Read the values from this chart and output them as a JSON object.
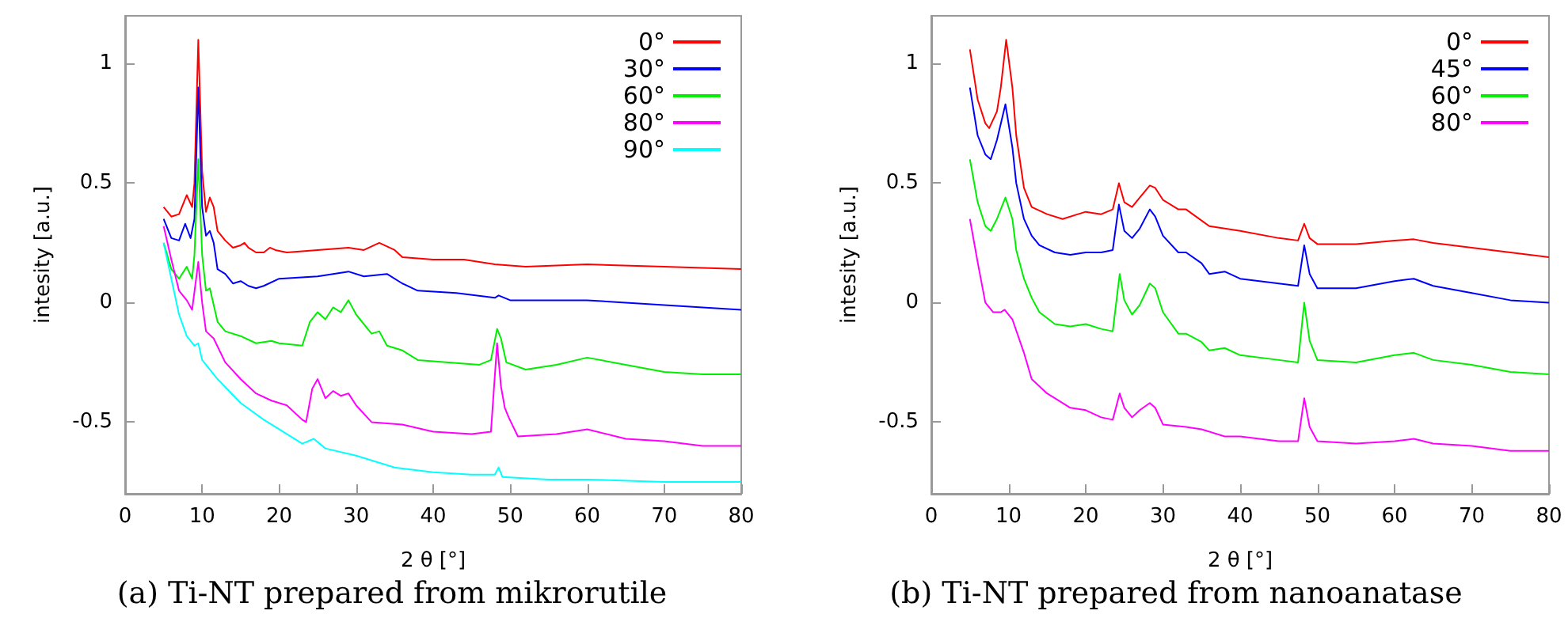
{
  "chart_data": [
    {
      "type": "line",
      "xlabel": "2 θ [°]",
      "ylabel": "intesity [a.u.]",
      "annotations": [
        "(a) Ti-NT prepared from mikrorutile"
      ],
      "xlim": [
        0,
        80
      ],
      "xticks": [
        0,
        10,
        20,
        30,
        40,
        50,
        60,
        70,
        80
      ],
      "ylim": [
        -0.8,
        1.2
      ],
      "yticks": [
        -0.5,
        0,
        0.5,
        1
      ],
      "grid": false,
      "legend": "top right",
      "line_style": "solid",
      "series": [
        {
          "name": "0°",
          "color": "#ff0000",
          "x": [
            5,
            6,
            7,
            8,
            8.7,
            9,
            9.5,
            10,
            10.5,
            11,
            11.5,
            12,
            13,
            14,
            15,
            15.5,
            16,
            17,
            18,
            18.8,
            19.5,
            21,
            25,
            29,
            31,
            33,
            35,
            36,
            40,
            44,
            48,
            52,
            60,
            70,
            80
          ],
          "values": [
            0.4,
            0.36,
            0.37,
            0.45,
            0.4,
            0.5,
            1.1,
            0.55,
            0.38,
            0.44,
            0.4,
            0.3,
            0.26,
            0.23,
            0.24,
            0.25,
            0.23,
            0.21,
            0.21,
            0.23,
            0.22,
            0.21,
            0.22,
            0.23,
            0.22,
            0.25,
            0.22,
            0.19,
            0.18,
            0.18,
            0.16,
            0.15,
            0.16,
            0.15,
            0.14
          ]
        },
        {
          "name": "30°",
          "color": "#0000ff",
          "x": [
            5,
            6,
            7,
            7.8,
            8.5,
            9,
            9.5,
            10,
            10.5,
            11,
            11.5,
            12,
            13,
            14,
            15,
            16,
            17,
            18,
            20,
            25,
            29,
            31,
            34,
            36,
            38,
            43,
            48,
            48.5,
            50,
            60,
            70,
            80
          ],
          "values": [
            0.35,
            0.27,
            0.26,
            0.33,
            0.27,
            0.35,
            0.9,
            0.4,
            0.28,
            0.3,
            0.25,
            0.14,
            0.12,
            0.08,
            0.09,
            0.07,
            0.06,
            0.07,
            0.1,
            0.11,
            0.13,
            0.11,
            0.12,
            0.08,
            0.05,
            0.04,
            0.02,
            0.03,
            0.01,
            0.01,
            -0.01,
            -0.03
          ]
        },
        {
          "name": "60°",
          "color": "#00ee00",
          "x": [
            5,
            6,
            7,
            8,
            8.7,
            9,
            9.5,
            10,
            10.5,
            11,
            12,
            13,
            15,
            17,
            19,
            20,
            23,
            24,
            25,
            26,
            27,
            28,
            29,
            30,
            32,
            33,
            34,
            36,
            38,
            42,
            46,
            47.5,
            48.3,
            48.8,
            49.5,
            52,
            56,
            60,
            65,
            70,
            75,
            80
          ],
          "values": [
            0.25,
            0.14,
            0.1,
            0.15,
            0.1,
            0.2,
            0.6,
            0.2,
            0.05,
            0.06,
            -0.08,
            -0.12,
            -0.14,
            -0.17,
            -0.16,
            -0.17,
            -0.18,
            -0.08,
            -0.04,
            -0.07,
            -0.02,
            -0.04,
            0.01,
            -0.05,
            -0.13,
            -0.12,
            -0.18,
            -0.2,
            -0.24,
            -0.25,
            -0.26,
            -0.24,
            -0.11,
            -0.15,
            -0.25,
            -0.28,
            -0.26,
            -0.23,
            -0.26,
            -0.29,
            -0.3,
            -0.3
          ]
        },
        {
          "name": "80°",
          "color": "#ff00ff",
          "x": [
            5,
            6,
            7,
            8,
            8.7,
            9.5,
            10,
            10.5,
            11.5,
            13,
            15,
            17,
            19,
            21,
            23,
            23.5,
            24.3,
            25,
            26,
            27,
            28,
            29,
            30,
            32,
            36,
            40,
            45,
            47.5,
            48.3,
            48.8,
            49.3,
            49.8,
            51,
            56,
            60,
            65,
            70,
            75,
            80
          ],
          "values": [
            0.32,
            0.18,
            0.05,
            0.01,
            -0.03,
            0.17,
            0.0,
            -0.12,
            -0.15,
            -0.25,
            -0.32,
            -0.38,
            -0.41,
            -0.43,
            -0.49,
            -0.5,
            -0.36,
            -0.32,
            -0.4,
            -0.37,
            -0.39,
            -0.38,
            -0.43,
            -0.5,
            -0.51,
            -0.54,
            -0.55,
            -0.54,
            -0.17,
            -0.35,
            -0.44,
            -0.48,
            -0.56,
            -0.55,
            -0.53,
            -0.57,
            -0.58,
            -0.6,
            -0.6
          ]
        },
        {
          "name": "90°",
          "color": "#00ffff",
          "x": [
            5,
            6,
            7,
            8,
            9,
            9.5,
            10,
            12,
            15,
            18,
            20,
            23,
            24.5,
            26,
            30,
            35,
            40,
            45,
            48,
            48.5,
            49,
            55,
            60,
            70,
            80
          ],
          "values": [
            0.25,
            0.1,
            -0.05,
            -0.14,
            -0.18,
            -0.17,
            -0.24,
            -0.32,
            -0.42,
            -0.49,
            -0.53,
            -0.59,
            -0.57,
            -0.61,
            -0.64,
            -0.69,
            -0.71,
            -0.72,
            -0.72,
            -0.69,
            -0.73,
            -0.74,
            -0.74,
            -0.75,
            -0.75
          ]
        }
      ]
    },
    {
      "type": "line",
      "xlabel": "2 θ [°]",
      "ylabel": "intesity [a.u.]",
      "annotations": [
        "(b) Ti-NT prepared from nanoanatase"
      ],
      "xlim": [
        0,
        80
      ],
      "xticks": [
        0,
        10,
        20,
        30,
        40,
        50,
        60,
        70,
        80
      ],
      "ylim": [
        -0.8,
        1.2
      ],
      "yticks": [
        -0.5,
        0,
        0.5,
        1
      ],
      "grid": false,
      "legend": "top right",
      "line_style": "solid",
      "series": [
        {
          "name": "0°",
          "color": "#ff0000",
          "x": [
            5,
            6,
            7,
            7.5,
            8.5,
            9,
            9.7,
            10.5,
            11,
            12,
            13,
            15,
            17,
            19,
            20,
            22,
            23.5,
            24.3,
            25,
            26,
            27,
            28.3,
            29,
            30,
            32,
            33,
            36,
            40,
            45,
            47.5,
            48.3,
            49,
            50,
            55,
            60,
            62.5,
            65,
            70,
            75,
            80
          ],
          "values": [
            1.06,
            0.85,
            0.75,
            0.73,
            0.8,
            0.9,
            1.1,
            0.9,
            0.7,
            0.48,
            0.4,
            0.37,
            0.35,
            0.37,
            0.38,
            0.37,
            0.39,
            0.5,
            0.42,
            0.4,
            0.44,
            0.49,
            0.48,
            0.43,
            0.39,
            0.39,
            0.32,
            0.3,
            0.27,
            0.26,
            0.33,
            0.27,
            0.245,
            0.245,
            0.26,
            0.265,
            0.25,
            0.23,
            0.21,
            0.19
          ]
        },
        {
          "name": "45°",
          "color": "#0000ff",
          "x": [
            5,
            6,
            7,
            7.7,
            8.5,
            9.6,
            10.5,
            11,
            12,
            13,
            14,
            16,
            18,
            20,
            22,
            23.5,
            24.3,
            25,
            26,
            27,
            28.3,
            29,
            30,
            32,
            33,
            35,
            36,
            38,
            40,
            45,
            47.5,
            48.3,
            49,
            50,
            55,
            60,
            62.5,
            65,
            70,
            75,
            80
          ],
          "values": [
            0.9,
            0.7,
            0.62,
            0.6,
            0.68,
            0.83,
            0.65,
            0.5,
            0.35,
            0.28,
            0.24,
            0.21,
            0.2,
            0.21,
            0.21,
            0.22,
            0.41,
            0.3,
            0.27,
            0.31,
            0.39,
            0.36,
            0.28,
            0.21,
            0.21,
            0.165,
            0.12,
            0.13,
            0.1,
            0.08,
            0.07,
            0.24,
            0.12,
            0.06,
            0.06,
            0.09,
            0.1,
            0.07,
            0.04,
            0.01,
            0.0
          ]
        },
        {
          "name": "60°",
          "color": "#00ee00",
          "x": [
            5,
            6,
            7,
            7.7,
            8.5,
            9.6,
            10.5,
            11,
            12,
            13,
            14,
            16,
            18,
            20,
            22,
            23.5,
            24.4,
            25,
            26,
            27,
            28.3,
            29,
            30,
            32,
            33,
            35,
            36,
            38,
            40,
            45,
            47.5,
            48.3,
            49,
            50,
            55,
            60,
            62.5,
            65,
            70,
            75,
            80
          ],
          "values": [
            0.6,
            0.42,
            0.32,
            0.3,
            0.35,
            0.44,
            0.35,
            0.22,
            0.1,
            0.02,
            -0.04,
            -0.09,
            -0.1,
            -0.09,
            -0.11,
            -0.12,
            0.12,
            0.01,
            -0.05,
            -0.01,
            0.08,
            0.06,
            -0.04,
            -0.13,
            -0.13,
            -0.165,
            -0.2,
            -0.19,
            -0.22,
            -0.24,
            -0.25,
            0.0,
            -0.16,
            -0.24,
            -0.25,
            -0.22,
            -0.21,
            -0.24,
            -0.26,
            -0.29,
            -0.3
          ]
        },
        {
          "name": "80°",
          "color": "#ff00ff",
          "x": [
            5,
            6,
            7,
            8,
            9,
            9.5,
            10.5,
            12,
            13,
            15,
            18,
            20,
            22,
            23.5,
            24.4,
            25,
            26,
            27,
            28.3,
            29,
            30,
            33,
            35,
            38,
            40,
            45,
            47.5,
            48.3,
            49,
            50,
            55,
            60,
            62.5,
            65,
            70,
            75,
            80
          ],
          "values": [
            0.35,
            0.17,
            0.0,
            -0.04,
            -0.04,
            -0.03,
            -0.07,
            -0.21,
            -0.32,
            -0.38,
            -0.44,
            -0.45,
            -0.48,
            -0.49,
            -0.38,
            -0.44,
            -0.48,
            -0.45,
            -0.42,
            -0.44,
            -0.51,
            -0.52,
            -0.53,
            -0.56,
            -0.56,
            -0.58,
            -0.58,
            -0.4,
            -0.52,
            -0.58,
            -0.59,
            -0.58,
            -0.57,
            -0.59,
            -0.6,
            -0.62,
            -0.62
          ]
        }
      ]
    }
  ]
}
